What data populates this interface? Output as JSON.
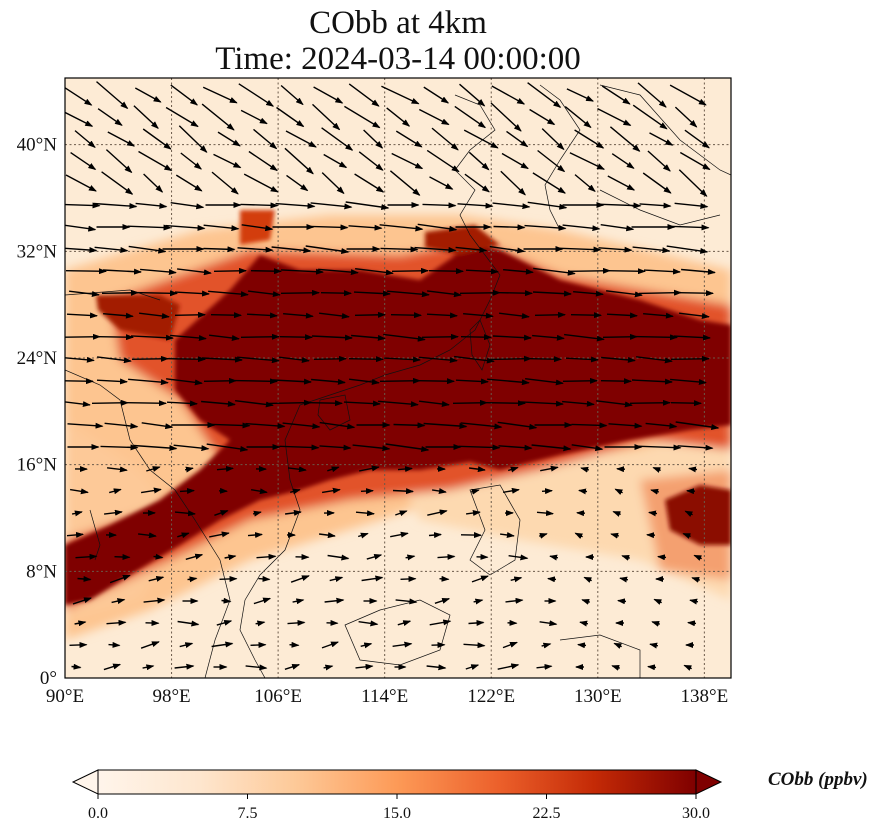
{
  "title": {
    "line1": "CObb at 4km",
    "line2": "Time: 2024-03-14 00:00:00"
  },
  "map": {
    "lon_range": [
      90,
      140
    ],
    "lat_range": [
      0,
      45
    ],
    "x_ticks": [
      "90°E",
      "98°E",
      "106°E",
      "114°E",
      "122°E",
      "130°E",
      "138°E"
    ],
    "x_tick_values": [
      90,
      98,
      106,
      114,
      122,
      130,
      138
    ],
    "y_ticks": [
      "0°",
      "8°N",
      "16°N",
      "24°N",
      "32°N",
      "40°N"
    ],
    "y_tick_values": [
      0,
      8,
      16,
      24,
      32,
      40
    ],
    "gridlines": true,
    "gridline_style": "dotted",
    "field_colormap": [
      "#fff5eb",
      "#fdd9b0",
      "#fdab67",
      "#f4702a",
      "#d33c0b",
      "#a31c03",
      "#7f0000"
    ]
  },
  "colorbar": {
    "title": "CObb (ppbv)",
    "ticks": [
      "0.0",
      "7.5",
      "15.0",
      "22.5",
      "30.0"
    ],
    "tick_values": [
      0,
      7.5,
      15,
      22.5,
      30
    ],
    "range": [
      0,
      30
    ],
    "extend": "both"
  }
}
